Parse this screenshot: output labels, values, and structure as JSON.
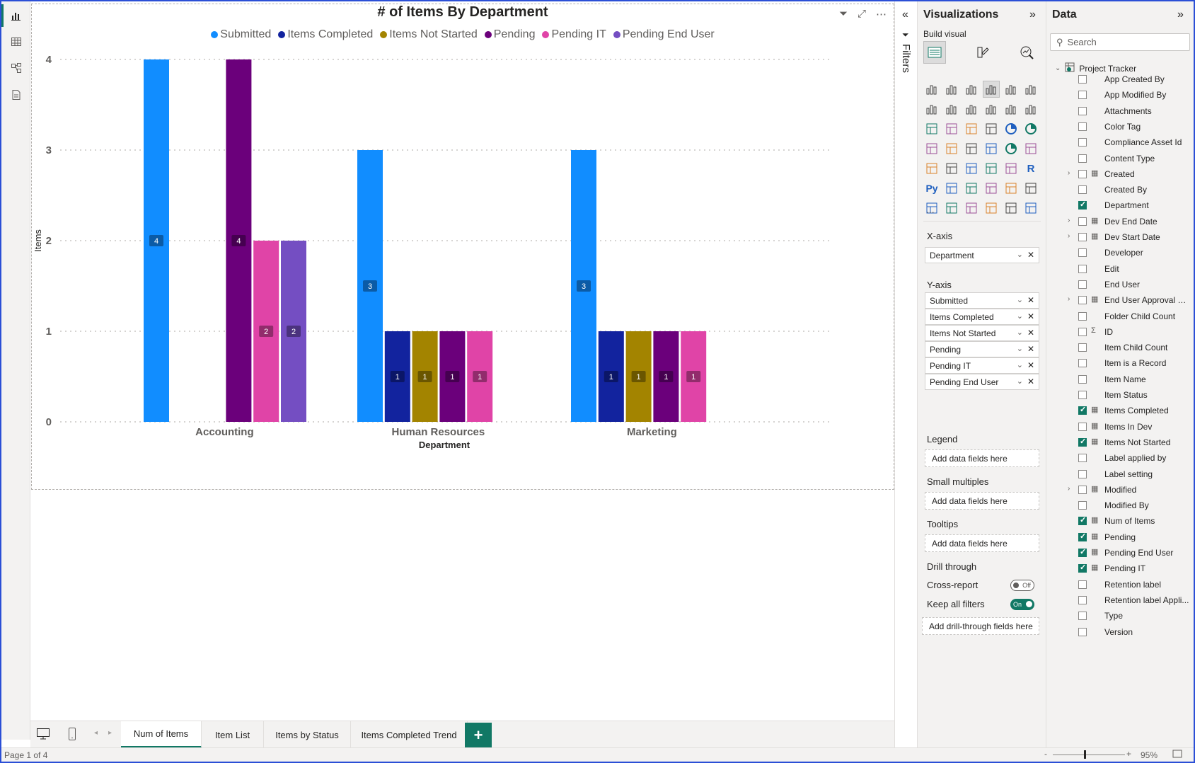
{
  "visual": {
    "title": "# of Items By Department"
  },
  "chart_data": {
    "type": "bar",
    "title": "# of Items By Department",
    "xlabel": "Department",
    "ylabel": "Items",
    "ylim": [
      0,
      4
    ],
    "yticks": [
      "0",
      "1",
      "2",
      "3",
      "4"
    ],
    "grid": true,
    "legend_position": "top-center",
    "categories": [
      "Accounting",
      "Human Resources",
      "Marketing"
    ],
    "series": [
      {
        "name": "Submitted",
        "color": "#118dff",
        "values": [
          4,
          3,
          3
        ]
      },
      {
        "name": "Items Completed",
        "color": "#12239e",
        "values": [
          null,
          1,
          1
        ]
      },
      {
        "name": "Items Not Started",
        "color": "#a38400",
        "values": [
          null,
          1,
          1
        ]
      },
      {
        "name": "Pending",
        "color": "#6b007b",
        "values": [
          4,
          1,
          1
        ]
      },
      {
        "name": "Pending IT",
        "color": "#e044a7",
        "values": [
          2,
          1,
          1
        ]
      },
      {
        "name": "Pending End User",
        "color": "#744ec2",
        "values": [
          2,
          null,
          null
        ]
      }
    ]
  },
  "tabs": {
    "items": [
      "Num of Items",
      "Item List",
      "Items by Status",
      "Items Completed Trend"
    ],
    "add": "+"
  },
  "status": {
    "page": "Page 1 of 4",
    "zoom": "95%",
    "zoom_minus": "-",
    "zoom_plus": "+"
  },
  "filters": {
    "label": "Filters",
    "collapse": "«"
  },
  "viz": {
    "title": "Visualizations",
    "expand": "»",
    "build_label": "Build visual",
    "more": "...",
    "xaxis_label": "X-axis",
    "xaxis_fields": [
      "Department"
    ],
    "yaxis_label": "Y-axis",
    "yaxis_fields": [
      "Submitted",
      "Items Completed",
      "Items Not Started",
      "Pending",
      "Pending IT",
      "Pending End User"
    ],
    "legend_label": "Legend",
    "legend_drop": "Add data fields here",
    "small_multiples_label": "Small multiples",
    "small_multiples_drop": "Add data fields here",
    "tooltips_label": "Tooltips",
    "tooltips_drop": "Add data fields here",
    "drill_label": "Drill through",
    "cross_report_label": "Cross-report",
    "cross_report_value": "Off",
    "keep_filters_label": "Keep all filters",
    "keep_filters_value": "On",
    "drill_drop": "Add drill-through fields here"
  },
  "data": {
    "title": "Data",
    "expand": "»",
    "search_placeholder": "Search",
    "table": "Project Tracker",
    "fields": [
      {
        "name": "App Created By",
        "checked": false,
        "expandable": false,
        "icon": ""
      },
      {
        "name": "App Modified By",
        "checked": false,
        "expandable": false,
        "icon": ""
      },
      {
        "name": "Attachments",
        "checked": false,
        "expandable": false,
        "icon": ""
      },
      {
        "name": "Color Tag",
        "checked": false,
        "expandable": false,
        "icon": ""
      },
      {
        "name": "Compliance Asset Id",
        "checked": false,
        "expandable": false,
        "icon": ""
      },
      {
        "name": "Content Type",
        "checked": false,
        "expandable": false,
        "icon": ""
      },
      {
        "name": "Created",
        "checked": false,
        "expandable": true,
        "icon": "▦"
      },
      {
        "name": "Created By",
        "checked": false,
        "expandable": false,
        "icon": ""
      },
      {
        "name": "Department",
        "checked": true,
        "expandable": false,
        "icon": ""
      },
      {
        "name": "Dev End Date",
        "checked": false,
        "expandable": true,
        "icon": "▦"
      },
      {
        "name": "Dev Start Date",
        "checked": false,
        "expandable": true,
        "icon": "▦"
      },
      {
        "name": "Developer",
        "checked": false,
        "expandable": false,
        "icon": ""
      },
      {
        "name": "Edit",
        "checked": false,
        "expandable": false,
        "icon": ""
      },
      {
        "name": "End User",
        "checked": false,
        "expandable": false,
        "icon": ""
      },
      {
        "name": "End User Approval D...",
        "checked": false,
        "expandable": true,
        "icon": "▦"
      },
      {
        "name": "Folder Child Count",
        "checked": false,
        "expandable": false,
        "icon": ""
      },
      {
        "name": "ID",
        "checked": false,
        "expandable": false,
        "icon": "Σ"
      },
      {
        "name": "Item Child Count",
        "checked": false,
        "expandable": false,
        "icon": ""
      },
      {
        "name": "Item is a Record",
        "checked": false,
        "expandable": false,
        "icon": ""
      },
      {
        "name": "Item Name",
        "checked": false,
        "expandable": false,
        "icon": ""
      },
      {
        "name": "Item Status",
        "checked": false,
        "expandable": false,
        "icon": ""
      },
      {
        "name": "Items Completed",
        "checked": true,
        "expandable": false,
        "icon": "▦"
      },
      {
        "name": "Items In Dev",
        "checked": false,
        "expandable": false,
        "icon": "▦"
      },
      {
        "name": "Items Not Started",
        "checked": true,
        "expandable": false,
        "icon": "▦"
      },
      {
        "name": "Label applied by",
        "checked": false,
        "expandable": false,
        "icon": ""
      },
      {
        "name": "Label setting",
        "checked": false,
        "expandable": false,
        "icon": ""
      },
      {
        "name": "Modified",
        "checked": false,
        "expandable": true,
        "icon": "▦"
      },
      {
        "name": "Modified By",
        "checked": false,
        "expandable": false,
        "icon": ""
      },
      {
        "name": "Num of Items",
        "checked": true,
        "expandable": false,
        "icon": "▦"
      },
      {
        "name": "Pending",
        "checked": true,
        "expandable": false,
        "icon": "▦"
      },
      {
        "name": "Pending End User",
        "checked": true,
        "expandable": false,
        "icon": "▦"
      },
      {
        "name": "Pending IT",
        "checked": true,
        "expandable": false,
        "icon": "▦"
      },
      {
        "name": "Retention label",
        "checked": false,
        "expandable": false,
        "icon": ""
      },
      {
        "name": "Retention label Appli...",
        "checked": false,
        "expandable": false,
        "icon": ""
      },
      {
        "name": "Type",
        "checked": false,
        "expandable": false,
        "icon": ""
      },
      {
        "name": "Version",
        "checked": false,
        "expandable": false,
        "icon": ""
      }
    ]
  }
}
